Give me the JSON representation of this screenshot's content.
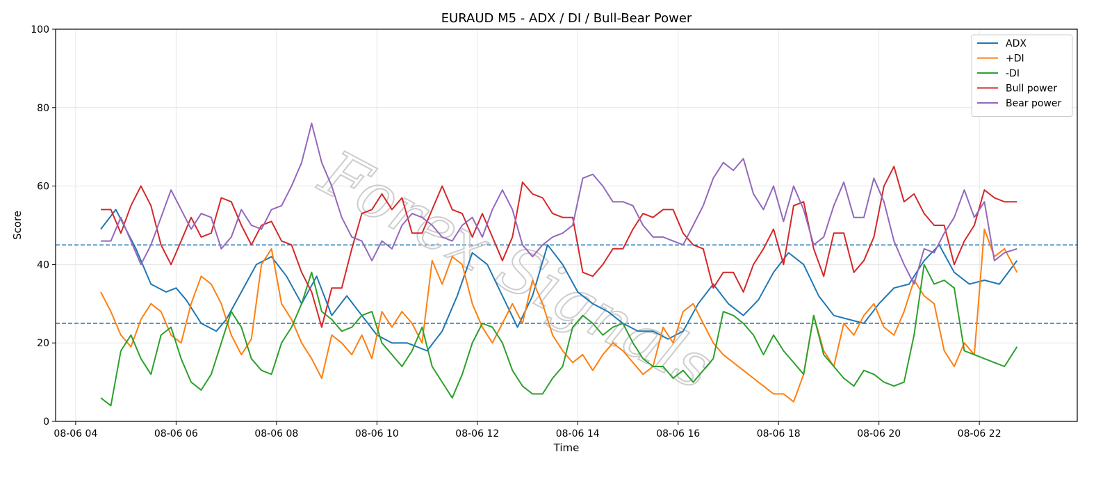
{
  "watermark": "Forex Signals",
  "chart_data": {
    "type": "line",
    "title": "EURAUD M5 - ADX / DI / Bull-Bear Power",
    "xlabel": "Time",
    "ylabel": "Score",
    "ylim": [
      0,
      100
    ],
    "yticks": [
      0,
      20,
      40,
      60,
      80,
      100
    ],
    "xlim_hours": [
      3.6,
      23.95
    ],
    "xticks": [
      {
        "hour": 4,
        "label": "08-06 04"
      },
      {
        "hour": 6,
        "label": "08-06 06"
      },
      {
        "hour": 8,
        "label": "08-06 08"
      },
      {
        "hour": 10,
        "label": "08-06 10"
      },
      {
        "hour": 12,
        "label": "08-06 12"
      },
      {
        "hour": 14,
        "label": "08-06 14"
      },
      {
        "hour": 16,
        "label": "08-06 16"
      },
      {
        "hour": 18,
        "label": "08-06 18"
      },
      {
        "hour": 20,
        "label": "08-06 20"
      },
      {
        "hour": 22,
        "label": "08-06 22"
      }
    ],
    "grid": true,
    "legend_position": "top-right",
    "hlines": [
      {
        "y": 45,
        "color": "#1f77b4",
        "style": "dashed"
      },
      {
        "y": 25,
        "color": "#1f77b4",
        "style": "dashed"
      }
    ],
    "series": [
      {
        "name": "ADX",
        "color": "#1f77b4",
        "x": [
          4.5,
          4.8,
          5.2,
          5.5,
          5.8,
          6.0,
          6.2,
          6.5,
          6.8,
          7.0,
          7.3,
          7.6,
          7.9,
          8.2,
          8.5,
          8.8,
          9.1,
          9.4,
          9.7,
          10.0,
          10.3,
          10.6,
          11.0,
          11.3,
          11.6,
          11.9,
          12.2,
          12.5,
          12.8,
          13.1,
          13.4,
          13.7,
          14.0,
          14.3,
          14.6,
          14.9,
          15.2,
          15.5,
          15.8,
          16.1,
          16.4,
          16.7,
          17.0,
          17.3,
          17.6,
          17.9,
          18.2,
          18.5,
          18.8,
          19.1,
          19.4,
          19.7,
          20.0,
          20.3,
          20.6,
          20.9,
          21.2,
          21.5,
          21.8,
          22.1,
          22.4,
          22.75
        ],
        "values": [
          49,
          54,
          44,
          35,
          33,
          34,
          31,
          25,
          23,
          26,
          33,
          40,
          42,
          37,
          30,
          37,
          27,
          32,
          27,
          22,
          20,
          20,
          18,
          23,
          32,
          43,
          40,
          32,
          24,
          32,
          45,
          40,
          33,
          30,
          28,
          25,
          23,
          23,
          21,
          23,
          30,
          35,
          30,
          27,
          31,
          38,
          43,
          40,
          32,
          27,
          26,
          25,
          30,
          34,
          35,
          41,
          45,
          38,
          35,
          36,
          35,
          41
        ]
      },
      {
        "name": "+DI",
        "color": "#ff7f0e",
        "x": [
          4.5,
          4.7,
          4.9,
          5.1,
          5.3,
          5.5,
          5.7,
          5.9,
          6.1,
          6.3,
          6.5,
          6.7,
          6.9,
          7.1,
          7.3,
          7.5,
          7.7,
          7.9,
          8.1,
          8.3,
          8.5,
          8.7,
          8.9,
          9.1,
          9.3,
          9.5,
          9.7,
          9.9,
          10.1,
          10.3,
          10.5,
          10.7,
          10.9,
          11.1,
          11.3,
          11.5,
          11.7,
          11.9,
          12.1,
          12.3,
          12.5,
          12.7,
          12.9,
          13.1,
          13.3,
          13.5,
          13.7,
          13.9,
          14.1,
          14.3,
          14.5,
          14.7,
          14.9,
          15.1,
          15.3,
          15.5,
          15.7,
          15.9,
          16.1,
          16.3,
          16.5,
          16.7,
          16.9,
          17.1,
          17.3,
          17.5,
          17.7,
          17.9,
          18.1,
          18.3,
          18.5,
          18.7,
          18.9,
          19.1,
          19.3,
          19.5,
          19.7,
          19.9,
          20.1,
          20.3,
          20.5,
          20.7,
          20.9,
          21.1,
          21.3,
          21.5,
          21.7,
          21.9,
          22.1,
          22.3,
          22.5,
          22.75
        ],
        "values": [
          33,
          28,
          22,
          19,
          26,
          30,
          28,
          22,
          20,
          30,
          37,
          35,
          30,
          22,
          17,
          21,
          40,
          44,
          30,
          26,
          20,
          16,
          11,
          22,
          20,
          17,
          22,
          16,
          28,
          24,
          28,
          25,
          20,
          41,
          35,
          42,
          40,
          30,
          24,
          20,
          25,
          30,
          25,
          36,
          30,
          22,
          18,
          15,
          17,
          13,
          17,
          20,
          18,
          15,
          12,
          14,
          24,
          20,
          28,
          30,
          25,
          20,
          17,
          15,
          13,
          11,
          9,
          7,
          7,
          5,
          12,
          27,
          18,
          14,
          25,
          22,
          27,
          30,
          24,
          22,
          28,
          36,
          32,
          30,
          18,
          14,
          20,
          17,
          49,
          42,
          44,
          38
        ]
      },
      {
        "name": "-DI",
        "color": "#2ca02c",
        "x": [
          4.5,
          4.7,
          4.9,
          5.1,
          5.3,
          5.5,
          5.7,
          5.9,
          6.1,
          6.3,
          6.5,
          6.7,
          6.9,
          7.1,
          7.3,
          7.5,
          7.7,
          7.9,
          8.1,
          8.3,
          8.5,
          8.7,
          8.9,
          9.1,
          9.3,
          9.5,
          9.7,
          9.9,
          10.1,
          10.3,
          10.5,
          10.7,
          10.9,
          11.1,
          11.3,
          11.5,
          11.7,
          11.9,
          12.1,
          12.3,
          12.5,
          12.7,
          12.9,
          13.1,
          13.3,
          13.5,
          13.7,
          13.9,
          14.1,
          14.3,
          14.5,
          14.7,
          14.9,
          15.1,
          15.3,
          15.5,
          15.7,
          15.9,
          16.1,
          16.3,
          16.5,
          16.7,
          16.9,
          17.1,
          17.3,
          17.5,
          17.7,
          17.9,
          18.1,
          18.3,
          18.5,
          18.7,
          18.9,
          19.1,
          19.3,
          19.5,
          19.7,
          19.9,
          20.1,
          20.3,
          20.5,
          20.7,
          20.9,
          21.1,
          21.3,
          21.5,
          21.7,
          21.9,
          22.1,
          22.3,
          22.5,
          22.75
        ],
        "values": [
          6,
          4,
          18,
          22,
          16,
          12,
          22,
          24,
          16,
          10,
          8,
          12,
          20,
          28,
          24,
          16,
          13,
          12,
          20,
          24,
          30,
          38,
          28,
          26,
          23,
          24,
          27,
          28,
          20,
          17,
          14,
          18,
          24,
          14,
          10,
          6,
          12,
          20,
          25,
          24,
          20,
          13,
          9,
          7,
          7,
          11,
          14,
          24,
          27,
          25,
          22,
          24,
          25,
          20,
          16,
          14,
          14,
          11,
          13,
          10,
          13,
          16,
          28,
          27,
          25,
          22,
          17,
          22,
          18,
          15,
          12,
          27,
          17,
          14,
          11,
          9,
          13,
          12,
          10,
          9,
          10,
          22,
          40,
          35,
          36,
          34,
          18,
          17,
          16,
          15,
          14,
          19
        ]
      },
      {
        "name": "Bull power",
        "color": "#d62728",
        "x": [
          4.5,
          4.7,
          4.9,
          5.1,
          5.3,
          5.5,
          5.7,
          5.9,
          6.1,
          6.3,
          6.5,
          6.7,
          6.9,
          7.1,
          7.3,
          7.5,
          7.7,
          7.9,
          8.1,
          8.3,
          8.5,
          8.7,
          8.9,
          9.1,
          9.3,
          9.5,
          9.7,
          9.9,
          10.1,
          10.3,
          10.5,
          10.7,
          10.9,
          11.1,
          11.3,
          11.5,
          11.7,
          11.9,
          12.1,
          12.3,
          12.5,
          12.7,
          12.9,
          13.1,
          13.3,
          13.5,
          13.7,
          13.9,
          14.1,
          14.3,
          14.5,
          14.7,
          14.9,
          15.1,
          15.3,
          15.5,
          15.7,
          15.9,
          16.1,
          16.3,
          16.5,
          16.7,
          16.9,
          17.1,
          17.3,
          17.5,
          17.7,
          17.9,
          18.1,
          18.3,
          18.5,
          18.7,
          18.9,
          19.1,
          19.3,
          19.5,
          19.7,
          19.9,
          20.1,
          20.3,
          20.5,
          20.7,
          20.9,
          21.1,
          21.3,
          21.5,
          21.7,
          21.9,
          22.1,
          22.3,
          22.5,
          22.75
        ],
        "values": [
          54,
          54,
          48,
          55,
          60,
          55,
          45,
          40,
          46,
          52,
          47,
          48,
          57,
          56,
          50,
          45,
          50,
          51,
          46,
          45,
          38,
          33,
          24,
          34,
          34,
          44,
          53,
          54,
          58,
          54,
          57,
          48,
          48,
          54,
          60,
          54,
          53,
          47,
          53,
          47,
          41,
          47,
          61,
          58,
          57,
          53,
          52,
          52,
          38,
          37,
          40,
          44,
          44,
          49,
          53,
          52,
          54,
          54,
          48,
          45,
          44,
          34,
          38,
          38,
          33,
          40,
          44,
          49,
          40,
          55,
          56,
          44,
          37,
          48,
          48,
          38,
          41,
          47,
          60,
          65,
          56,
          58,
          53,
          50,
          50,
          40,
          46,
          50,
          59,
          57,
          56,
          56
        ]
      },
      {
        "name": "Bear power",
        "color": "#9467bd",
        "x": [
          4.5,
          4.7,
          4.9,
          5.1,
          5.3,
          5.5,
          5.7,
          5.9,
          6.1,
          6.3,
          6.5,
          6.7,
          6.9,
          7.1,
          7.3,
          7.5,
          7.7,
          7.9,
          8.1,
          8.3,
          8.5,
          8.7,
          8.9,
          9.1,
          9.3,
          9.5,
          9.7,
          9.9,
          10.1,
          10.3,
          10.5,
          10.7,
          10.9,
          11.1,
          11.3,
          11.5,
          11.7,
          11.9,
          12.1,
          12.3,
          12.5,
          12.7,
          12.9,
          13.1,
          13.3,
          13.5,
          13.7,
          13.9,
          14.1,
          14.3,
          14.5,
          14.7,
          14.9,
          15.1,
          15.3,
          15.5,
          15.7,
          15.9,
          16.1,
          16.3,
          16.5,
          16.7,
          16.9,
          17.1,
          17.3,
          17.5,
          17.7,
          17.9,
          18.1,
          18.3,
          18.5,
          18.7,
          18.9,
          19.1,
          19.3,
          19.5,
          19.7,
          19.9,
          20.1,
          20.3,
          20.5,
          20.7,
          20.9,
          21.1,
          21.3,
          21.5,
          21.7,
          21.9,
          22.1,
          22.3,
          22.5,
          22.75
        ],
        "values": [
          46,
          46,
          52,
          46,
          40,
          45,
          52,
          59,
          54,
          49,
          53,
          52,
          44,
          47,
          54,
          50,
          49,
          54,
          55,
          60,
          66,
          76,
          66,
          60,
          52,
          47,
          46,
          41,
          46,
          44,
          50,
          53,
          52,
          50,
          47,
          46,
          50,
          52,
          47,
          54,
          59,
          54,
          45,
          42,
          45,
          47,
          48,
          50,
          62,
          63,
          60,
          56,
          56,
          55,
          50,
          47,
          47,
          46,
          45,
          50,
          55,
          62,
          66,
          64,
          67,
          58,
          54,
          60,
          51,
          60,
          54,
          45,
          47,
          55,
          61,
          52,
          52,
          62,
          56,
          46,
          40,
          35,
          44,
          43,
          48,
          52,
          59,
          52,
          56,
          41,
          43,
          44
        ]
      }
    ]
  }
}
